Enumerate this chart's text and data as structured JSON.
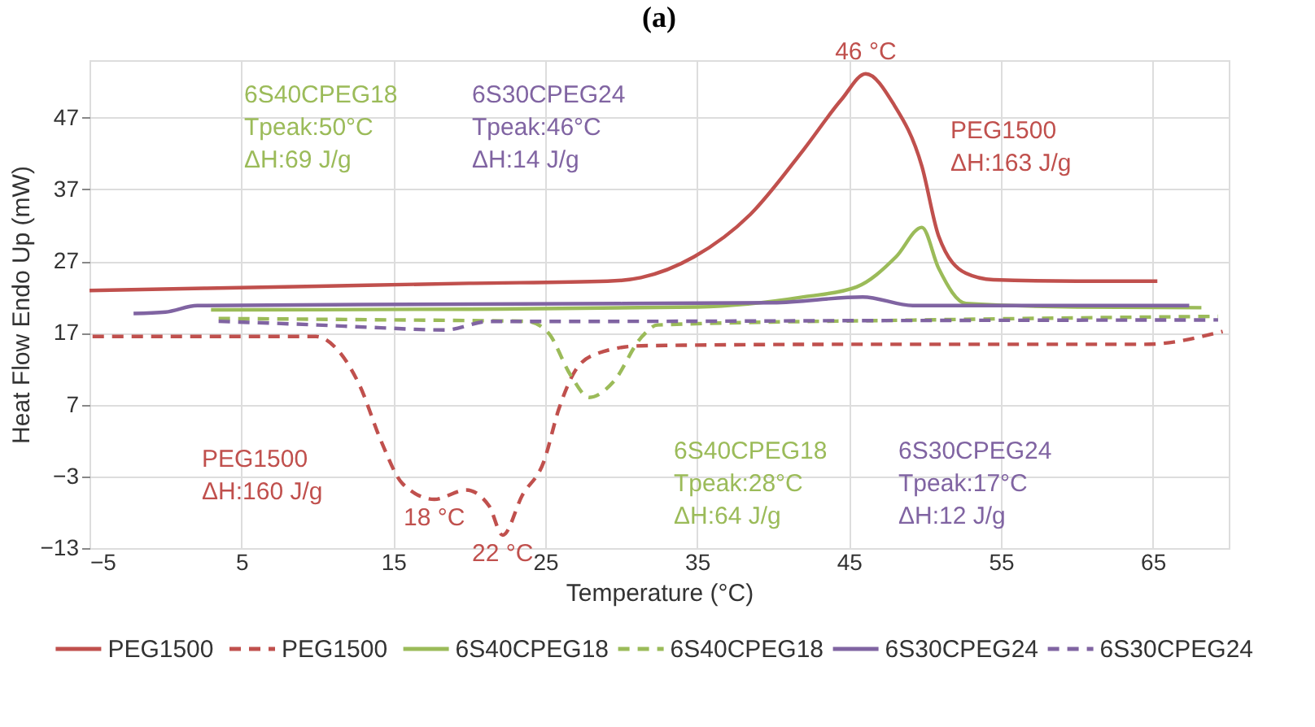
{
  "chart_data": {
    "type": "line",
    "title": "(a)",
    "xlabel": "Temperature (°C)",
    "ylabel": "Heat Flow Endo Up (mW)",
    "xlim": [
      -5,
      70
    ],
    "xticks": [
      -5,
      5,
      15,
      25,
      35,
      45,
      55,
      65
    ],
    "ylim": [
      -13,
      55
    ],
    "yticks": [
      -13,
      -3,
      7,
      17,
      27,
      37,
      47
    ],
    "grid": true,
    "legend": "bottom",
    "marker": "none",
    "series": [
      {
        "name": "PEG1500",
        "color": "#c0504d",
        "line_style": "solid",
        "x": [
          -5,
          10,
          20,
          29.1,
          31.3,
          34.8,
          38.5,
          42,
          44.5,
          46.1,
          47.9,
          49.8,
          50.9,
          52.7,
          54.5,
          60,
          65.3
        ],
        "values": [
          22.9,
          23.5,
          23.9,
          24.2,
          24.7,
          27.6,
          33.5,
          42.5,
          49.5,
          53.1,
          49,
          40.2,
          30.5,
          25.3,
          24.4,
          24.2,
          24.2
        ]
      },
      {
        "name": "PEG1500",
        "color": "#c0504d",
        "line_style": "dashed",
        "x": [
          -4.8,
          9.9,
          11.3,
          12.8,
          14.2,
          15.6,
          17.7,
          19.8,
          21.3,
          22.2,
          23.5,
          24.9,
          25.9,
          27,
          28.4,
          31.3,
          45,
          60,
          64.5,
          69.6
        ],
        "values": [
          16.5,
          16.5,
          14.7,
          9.6,
          1.9,
          -4,
          -6.2,
          -4.9,
          -7.1,
          -11.2,
          -5.6,
          -1,
          6.4,
          11.8,
          14.1,
          15.2,
          15.4,
          15.4,
          15.4,
          17.2
        ]
      },
      {
        "name": "6S40CPEG18",
        "color": "#9bbb59",
        "line_style": "solid",
        "x": [
          3,
          20,
          35,
          42,
          45.5,
          48.1,
          49.8,
          50.9,
          52.7,
          60,
          68.2
        ],
        "values": [
          20.2,
          20.3,
          20.6,
          22,
          23.4,
          27.6,
          31.7,
          26,
          21.1,
          20.6,
          20.5
        ]
      },
      {
        "name": "6S40CPEG18",
        "color": "#9bbb59",
        "line_style": "dashed",
        "x": [
          3.5,
          15,
          23.8,
          25.2,
          26.7,
          27.9,
          29.5,
          31.3,
          32.4,
          50,
          69.3
        ],
        "values": [
          19,
          18.8,
          18.6,
          17,
          11,
          8,
          10.2,
          16.3,
          18.1,
          18.8,
          19.3
        ]
      },
      {
        "name": "6S30CPEG24",
        "color": "#8064a2",
        "line_style": "solid",
        "x": [
          -2.1,
          0,
          2.1,
          20,
          40,
          45.9,
          49.2,
          60,
          67.4
        ],
        "values": [
          19.7,
          19.9,
          20.8,
          21,
          21.2,
          22,
          20.8,
          20.8,
          20.8
        ]
      },
      {
        "name": "6S30CPEG24",
        "color": "#8064a2",
        "line_style": "dashed",
        "x": [
          3.5,
          10,
          14.2,
          18.4,
          21.3,
          30,
          45,
          69.3
        ],
        "values": [
          18.6,
          18.1,
          17.7,
          17.4,
          18.6,
          18.6,
          18.7,
          18.8
        ]
      }
    ],
    "annotations": [
      {
        "text": "46 °C",
        "x": 46.1,
        "y": 53.1
      },
      {
        "text": "18 °C",
        "x": 17.7,
        "y": -6.2
      },
      {
        "text": "22 °C",
        "x": 22.2,
        "y": -11.2
      },
      "6S40CPEG18\nTpeak:50°C\nΔH:69 J/g",
      "6S30CPEG24\nTpeak:46°C\nΔH:14 J/g",
      "PEG1500\nΔH:163 J/g",
      "PEG1500\nΔH:160 J/g",
      "6S40CPEG18\nTpeak:28°C\nΔH:64 J/g",
      "6S30CPEG24\nTpeak:17°C\nΔH:12 J/g"
    ]
  }
}
